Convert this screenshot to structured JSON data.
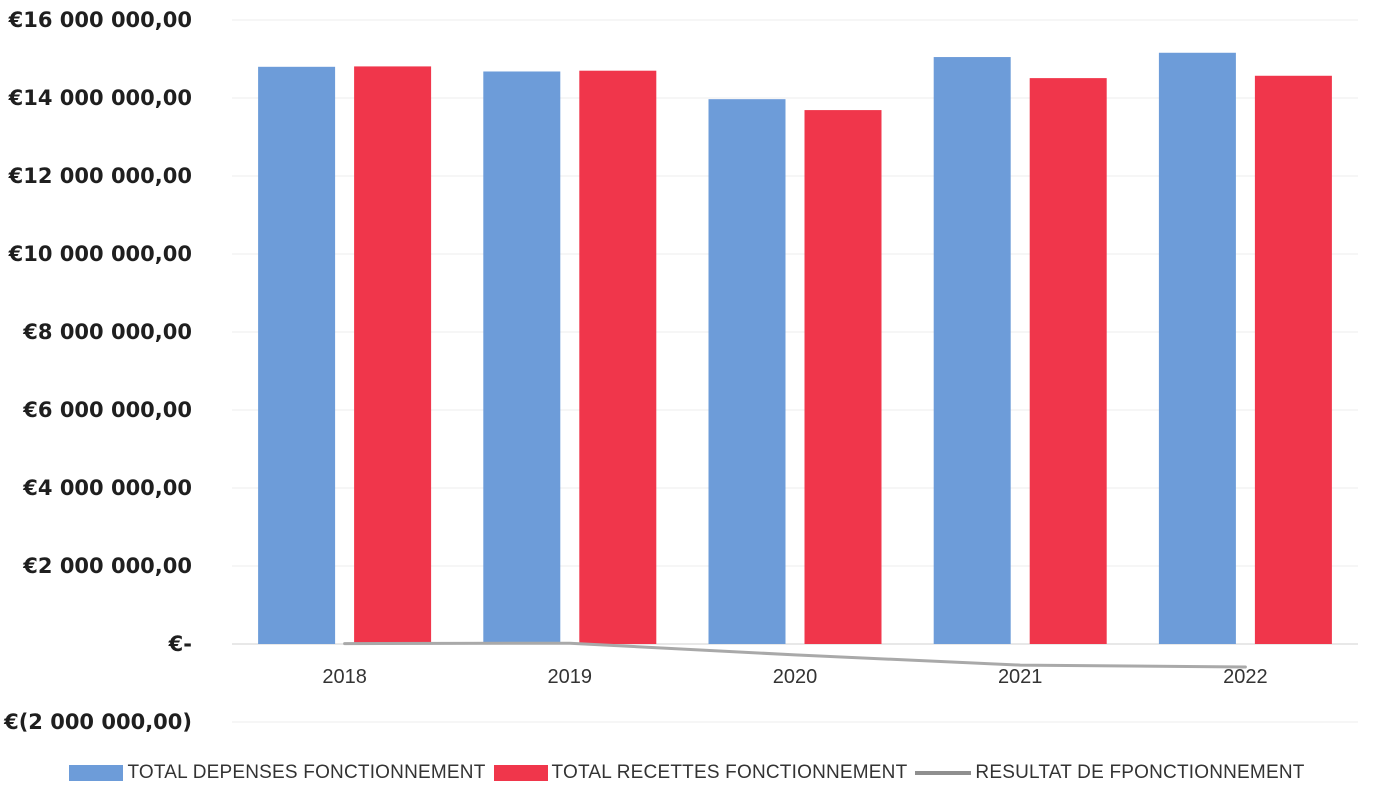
{
  "chart_data": {
    "type": "bar",
    "categories": [
      "2018",
      "2019",
      "2020",
      "2021",
      "2022"
    ],
    "series": [
      {
        "name": "TOTAL DEPENSES FONCTIONNEMENT",
        "kind": "bar",
        "color": "#6d9cd9",
        "values": [
          14800000,
          14680000,
          13970000,
          15050000,
          15160000
        ]
      },
      {
        "name": "TOTAL RECETTES FONCTIONNEMENT",
        "kind": "bar",
        "color": "#f0364b",
        "values": [
          14810000,
          14700000,
          13690000,
          14510000,
          14570000
        ]
      },
      {
        "name": "RESULTAT DE FPONCTIONNEMENT",
        "kind": "line",
        "color": "#a9a9a9",
        "values": [
          10000,
          20000,
          -280000,
          -540000,
          -590000
        ]
      }
    ],
    "yticks": [
      {
        "value": 16000000,
        "label": "€16 000 000,00"
      },
      {
        "value": 14000000,
        "label": "€14 000 000,00"
      },
      {
        "value": 12000000,
        "label": "€12 000 000,00"
      },
      {
        "value": 10000000,
        "label": "€10 000 000,00"
      },
      {
        "value": 8000000,
        "label": "€8 000 000,00"
      },
      {
        "value": 6000000,
        "label": "€6 000 000,00"
      },
      {
        "value": 4000000,
        "label": "€4 000 000,00"
      },
      {
        "value": 2000000,
        "label": "€2 000 000,00"
      },
      {
        "value": 0,
        "label": "€-"
      },
      {
        "value": -2000000,
        "label": "€(2 000 000,00)"
      }
    ],
    "ylim": [
      -2000000,
      16000000
    ],
    "title": "",
    "xlabel": "",
    "ylabel": "",
    "grid": true,
    "legend_position": "bottom"
  }
}
